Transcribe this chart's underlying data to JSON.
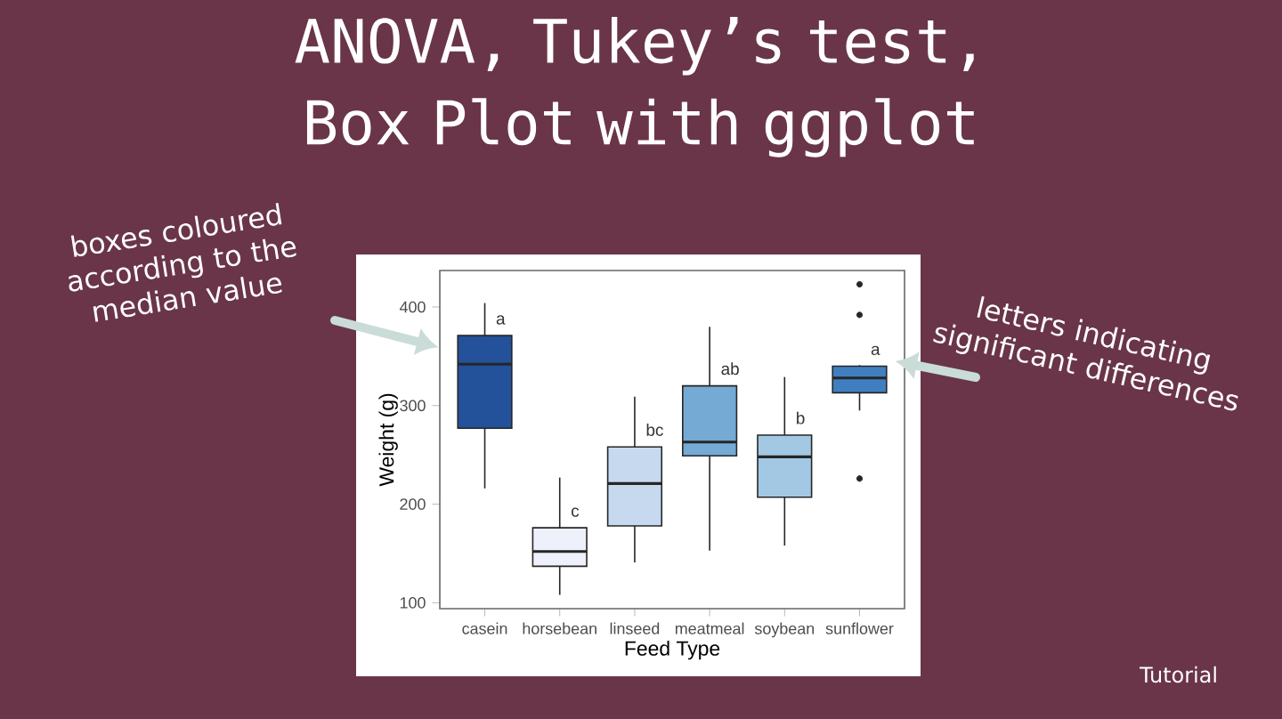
{
  "chart_data": {
    "type": "box",
    "title": "ANOVA, Tukey’s test, Box Plot with ggplot",
    "xlabel": "Feed Type",
    "ylabel": "Weight (g)",
    "categories": [
      "casein",
      "horsebean",
      "linseed",
      "meatmeal",
      "soybean",
      "sunflower"
    ],
    "boxes": [
      {
        "low": 216,
        "q1": 277,
        "median": 342,
        "q3": 371,
        "high": 404
      },
      {
        "low": 108,
        "q1": 137,
        "median": 152,
        "q3": 176,
        "high": 227
      },
      {
        "low": 141,
        "q1": 178,
        "median": 221,
        "q3": 258,
        "high": 309
      },
      {
        "low": 153,
        "q1": 249,
        "median": 263,
        "q3": 320,
        "high": 380
      },
      {
        "low": 158,
        "q1": 207,
        "median": 248,
        "q3": 270,
        "high": 329
      },
      {
        "low": 295,
        "q1": 313,
        "median": 328,
        "q3": 340,
        "high": 341,
        "outliers": [
          226,
          392,
          423
        ]
      }
    ],
    "colors": [
      "#23519a",
      "#eef0fb",
      "#c6d9ee",
      "#74aad4",
      "#a3c8e4",
      "#3f7fc0"
    ],
    "ylim": [
      94,
      437
    ],
    "yticks": [
      100,
      200,
      300,
      400
    ],
    "grid": false,
    "annotations": [
      {
        "text": "a",
        "x": "casein",
        "y": 371
      },
      {
        "text": "c",
        "x": "horsebean",
        "y": 176
      },
      {
        "text": "bc",
        "x": "linseed",
        "y": 258
      },
      {
        "text": "ab",
        "x": "meatmeal",
        "y": 320
      },
      {
        "text": "b",
        "x": "soybean",
        "y": 270
      },
      {
        "text": "a",
        "x": "sunflower",
        "y": 340
      },
      "boxes coloured according to the median value",
      "letters indicating significant differences",
      "Tutorial"
    ]
  }
}
